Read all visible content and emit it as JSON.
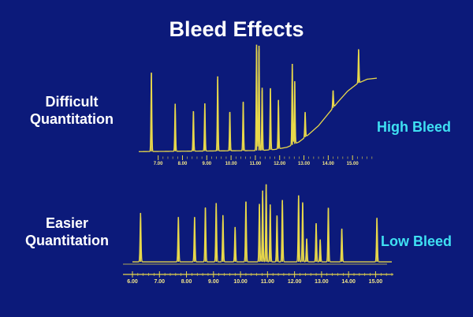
{
  "slide": {
    "title": "Bleed Effects",
    "top_label_line1": "Difficult",
    "top_label_line2": "Quantitation",
    "top_bleed_label": "High Bleed",
    "bottom_label_line1": "Easier",
    "bottom_label_line2": "Quantitation",
    "bottom_bleed_label": "Low Bleed",
    "background_color": "#0c1a7a",
    "trace_color": "#e8d84a",
    "accent_color": "#3fe0f2"
  },
  "chart_data": [
    {
      "type": "line",
      "title": "",
      "series_label": "High Bleed",
      "xlabel": "",
      "ylabel": "",
      "xlim": [
        6.2,
        16.0
      ],
      "ylim": [
        0,
        1
      ],
      "x_ticks": [
        "7.00",
        "8.00",
        "9.00",
        "10.00",
        "11.00",
        "12.00",
        "13.00",
        "14.00",
        "15.00"
      ],
      "x_tick_values": [
        7,
        8,
        9,
        10,
        11,
        12,
        13,
        14,
        15
      ],
      "baseline": [
        [
          6.2,
          0.02
        ],
        [
          11.2,
          0.03
        ],
        [
          11.8,
          0.04
        ],
        [
          12.3,
          0.06
        ],
        [
          12.8,
          0.11
        ],
        [
          13.2,
          0.18
        ],
        [
          13.6,
          0.26
        ],
        [
          14.0,
          0.37
        ],
        [
          14.4,
          0.48
        ],
        [
          14.8,
          0.58
        ],
        [
          15.2,
          0.65
        ],
        [
          15.6,
          0.69
        ],
        [
          16.0,
          0.7
        ]
      ],
      "peaks": [
        {
          "x": 6.72,
          "h": 0.73
        },
        {
          "x": 7.7,
          "h": 0.44
        },
        {
          "x": 8.45,
          "h": 0.37
        },
        {
          "x": 8.92,
          "h": 0.44
        },
        {
          "x": 9.45,
          "h": 0.69
        },
        {
          "x": 9.95,
          "h": 0.36
        },
        {
          "x": 10.5,
          "h": 0.45
        },
        {
          "x": 11.05,
          "h": 0.98
        },
        {
          "x": 11.15,
          "h": 0.97
        },
        {
          "x": 11.28,
          "h": 0.58
        },
        {
          "x": 11.62,
          "h": 0.57
        },
        {
          "x": 11.95,
          "h": 0.45
        },
        {
          "x": 12.52,
          "h": 0.75
        },
        {
          "x": 12.62,
          "h": 0.58
        },
        {
          "x": 13.05,
          "h": 0.23
        },
        {
          "x": 14.2,
          "h": 0.16
        },
        {
          "x": 15.25,
          "h": 0.31
        }
      ]
    },
    {
      "type": "line",
      "title": "",
      "series_label": "Low Bleed",
      "xlabel": "",
      "ylabel": "",
      "xlim": [
        6.0,
        15.6
      ],
      "ylim": [
        0,
        1
      ],
      "x_ticks": [
        "6.00",
        "7.00",
        "8.00",
        "9.00",
        "10.00",
        "11.00",
        "12.00",
        "13.00",
        "14.00",
        "15.00"
      ],
      "x_tick_values": [
        6,
        7,
        8,
        9,
        10,
        11,
        12,
        13,
        14,
        15
      ],
      "baseline": [
        [
          6.0,
          0.02
        ],
        [
          15.6,
          0.02
        ]
      ],
      "peaks": [
        {
          "x": 6.3,
          "h": 0.63
        },
        {
          "x": 7.7,
          "h": 0.58
        },
        {
          "x": 8.3,
          "h": 0.58
        },
        {
          "x": 8.7,
          "h": 0.7
        },
        {
          "x": 9.1,
          "h": 0.76
        },
        {
          "x": 9.35,
          "h": 0.6
        },
        {
          "x": 9.8,
          "h": 0.45
        },
        {
          "x": 10.2,
          "h": 0.78
        },
        {
          "x": 10.7,
          "h": 0.75
        },
        {
          "x": 10.82,
          "h": 0.92
        },
        {
          "x": 10.95,
          "h": 1.0
        },
        {
          "x": 11.1,
          "h": 0.74
        },
        {
          "x": 11.35,
          "h": 0.6
        },
        {
          "x": 11.55,
          "h": 0.8
        },
        {
          "x": 12.15,
          "h": 0.86
        },
        {
          "x": 12.3,
          "h": 0.77
        },
        {
          "x": 12.45,
          "h": 0.3
        },
        {
          "x": 12.8,
          "h": 0.5
        },
        {
          "x": 12.95,
          "h": 0.29
        },
        {
          "x": 13.25,
          "h": 0.7
        },
        {
          "x": 13.75,
          "h": 0.43
        },
        {
          "x": 15.05,
          "h": 0.57
        }
      ]
    }
  ]
}
